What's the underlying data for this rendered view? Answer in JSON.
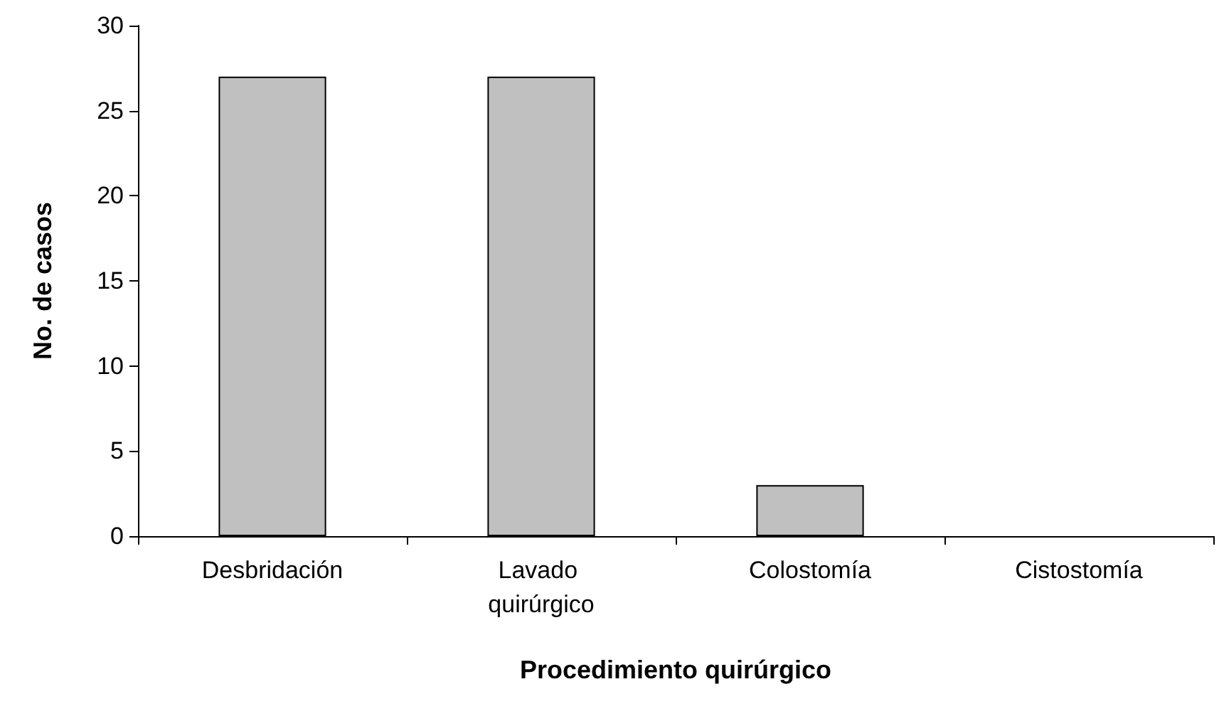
{
  "chart_data": {
    "type": "bar",
    "xlabel": "Procedimiento quirúrgico",
    "ylabel": "No. de casos",
    "categories": [
      "Desbridación",
      "Lavado quirúrgico",
      "Colostomía",
      "Cistostomía"
    ],
    "values": [
      27,
      27,
      3,
      0
    ],
    "color": "#c0c0c0",
    "ylim": [
      0,
      30
    ],
    "yticks": [
      0,
      5,
      10,
      15,
      20,
      25,
      30
    ]
  }
}
